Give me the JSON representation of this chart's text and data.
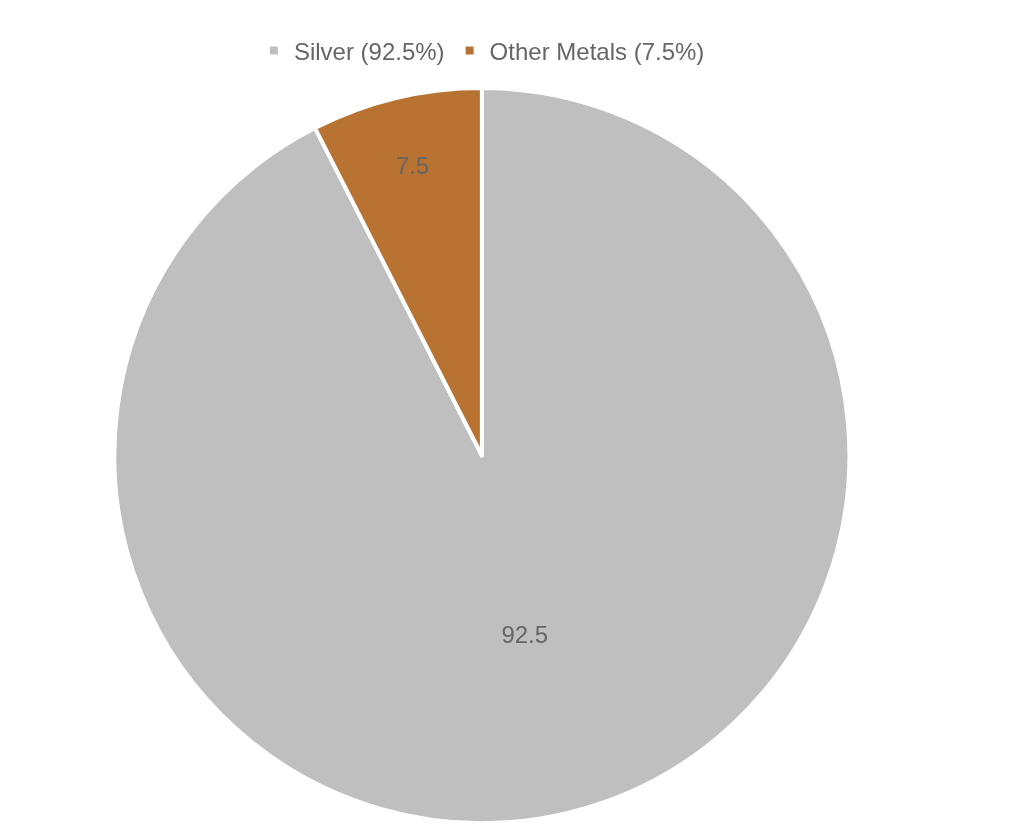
{
  "chart_data": {
    "type": "pie",
    "categories": [
      "Silver (92.5%)",
      "Other Metals (7.5%)"
    ],
    "values": [
      92.5,
      7.5
    ],
    "colors": [
      "#bfbfbf",
      "#b87333"
    ],
    "data_labels": true,
    "legend": "top"
  }
}
